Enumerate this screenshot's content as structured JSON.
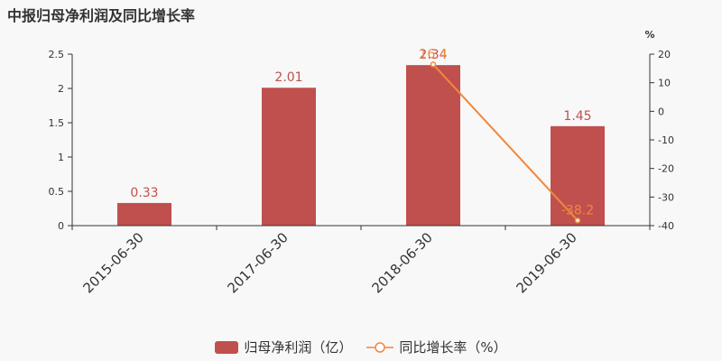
{
  "title": "中报归母净利润及同比增长率",
  "colors": {
    "bar": "#c0504d",
    "line": "#f0883b",
    "axis": "#333333"
  },
  "chart_data": {
    "type": "bar",
    "categories": [
      "2015-06-30",
      "2017-06-30",
      "2018-06-30",
      "2019-06-30"
    ],
    "series": [
      {
        "name": "归母净利润（亿）",
        "type": "bar",
        "axis": "left",
        "values": [
          0.33,
          2.01,
          2.34,
          1.45
        ]
      },
      {
        "name": "同比增长率（%）",
        "type": "line",
        "axis": "right",
        "values": [
          null,
          null,
          16.4,
          -38.2
        ]
      }
    ],
    "y_left": {
      "range": [
        0,
        2.5
      ],
      "ticks": [
        "0",
        "0.5",
        "1",
        "1.5",
        "2",
        "2.5"
      ]
    },
    "y_right": {
      "unit": "%",
      "range": [
        -40,
        20
      ],
      "ticks": [
        "-40",
        "-30",
        "-20",
        "-10",
        "0",
        "10",
        "20"
      ]
    },
    "bar_labels": [
      "0.33",
      "2.01",
      "2.34",
      "1.45"
    ],
    "line_labels": [
      "",
      "",
      "16.4",
      "-38.2"
    ],
    "legend_position": "bottom"
  }
}
